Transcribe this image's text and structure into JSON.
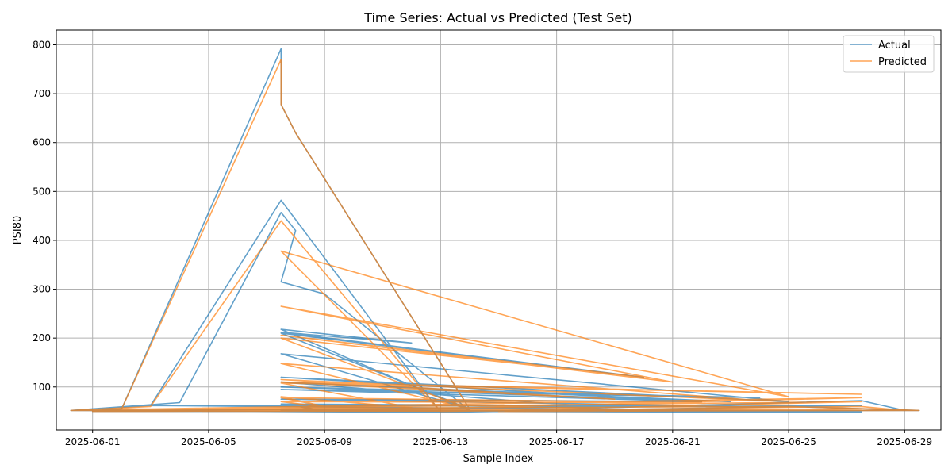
{
  "chart_data": {
    "type": "line",
    "title": "Time Series: Actual vs Predicted (Test Set)",
    "xlabel": "Sample Index",
    "ylabel": "PSI80",
    "x_axis_type": "date",
    "xlim": [
      "2025-05-30T18:00",
      "2025-06-30T06:00"
    ],
    "ylim": [
      12,
      830
    ],
    "x_ticks": [
      "2025-06-01",
      "2025-06-05",
      "2025-06-09",
      "2025-06-13",
      "2025-06-17",
      "2025-06-21",
      "2025-06-25",
      "2025-06-29"
    ],
    "y_ticks": [
      100,
      200,
      300,
      400,
      500,
      600,
      700,
      800
    ],
    "grid": true,
    "legend_position": "top-right",
    "colors": {
      "actual": "#1f77b4",
      "predicted": "#ff7f0e"
    },
    "series": [
      {
        "name": "Actual",
        "x": [
          "2025-05-31T06:00",
          "2025-06-01",
          "2025-06-02",
          "2025-06-07T12:00",
          "2025-06-07T12:00",
          "2025-06-08",
          "2025-06-14",
          "2025-05-31T06:00",
          "2025-06-03",
          "2025-06-07T12:00",
          "2025-06-13",
          "2025-05-31T06:00",
          "2025-06-04",
          "2025-06-07T12:00",
          "2025-06-08",
          "2025-06-07T12:00",
          "2025-06-09",
          "2025-06-14",
          "2025-06-07T12:00",
          "2025-06-12",
          "2025-06-07T12:00",
          "2025-06-20",
          "2025-06-07T12:00",
          "2025-06-14",
          "2025-06-07T12:00",
          "2025-06-25",
          "2025-06-07T12:00",
          "2025-06-19",
          "2025-06-07T12:00",
          "2025-06-18",
          "2025-06-07T12:00",
          "2025-06-23",
          "2025-06-07T12:00",
          "2025-06-24",
          "2025-06-07T12:00",
          "2025-06-22",
          "2025-06-07T12:00",
          "2025-06-24",
          "2025-06-07T12:00",
          "2025-06-09",
          "2025-06-07T12:00",
          "2025-06-27T12:00",
          "2025-06-13",
          "2025-06-27T12:00",
          "2025-06-29",
          "2025-06-14",
          "2025-06-27T12:00",
          "2025-06-07T12:00",
          "2025-06-29T12:00",
          "2025-06-01",
          "2025-06-27T12:00",
          "2025-06-03",
          "2025-06-25",
          "2025-06-29T12:00"
        ],
        "y": [
          52,
          52,
          55,
          792,
          678,
          620,
          55,
          52,
          62,
          482,
          48,
          52,
          68,
          457,
          420,
          315,
          290,
          52,
          218,
          190,
          212,
          120,
          210,
          55,
          168,
          70,
          120,
          80,
          110,
          60,
          110,
          70,
          100,
          78,
          95,
          70,
          75,
          60,
          65,
          52,
          55,
          62,
          48,
          72,
          52,
          50,
          48,
          52,
          52,
          50,
          50,
          62,
          60,
          52
        ]
      },
      {
        "name": "Predicted",
        "x": [
          "2025-05-31T06:00",
          "2025-06-01",
          "2025-06-02",
          "2025-06-07T12:00",
          "2025-06-07T12:00",
          "2025-06-08",
          "2025-06-14",
          "2025-05-31T06:00",
          "2025-06-03",
          "2025-06-07T12:00",
          "2025-06-13",
          "2025-06-07T12:00",
          "2025-06-25",
          "2025-06-07T12:00",
          "2025-06-21",
          "2025-06-07T12:00",
          "2025-06-20",
          "2025-06-07T12:00",
          "2025-06-14",
          "2025-06-07T12:00",
          "2025-06-24",
          "2025-06-07T12:00",
          "2025-06-19",
          "2025-06-07T12:00",
          "2025-06-27T12:00",
          "2025-06-07T12:00",
          "2025-06-12",
          "2025-06-07T12:00",
          "2025-06-09",
          "2025-06-07T12:00",
          "2025-06-22",
          "2025-06-07T12:00",
          "2025-06-10",
          "2025-06-27T12:00",
          "2025-06-03",
          "2025-06-27T12:00",
          "2025-06-13",
          "2025-06-27T12:00",
          "2025-06-29",
          "2025-06-15",
          "2025-06-27T12:00",
          "2025-06-01",
          "2025-06-29T12:00",
          "2025-06-02",
          "2025-06-25",
          "2025-06-29T12:00"
        ],
        "y": [
          52,
          52,
          55,
          770,
          678,
          620,
          55,
          52,
          60,
          440,
          50,
          378,
          80,
          265,
          110,
          206,
          120,
          200,
          55,
          148,
          72,
          115,
          75,
          110,
          85,
          108,
          58,
          80,
          60,
          78,
          68,
          70,
          52,
          78,
          55,
          70,
          50,
          60,
          52,
          50,
          55,
          50,
          52,
          55,
          60,
          52
        ]
      }
    ]
  }
}
